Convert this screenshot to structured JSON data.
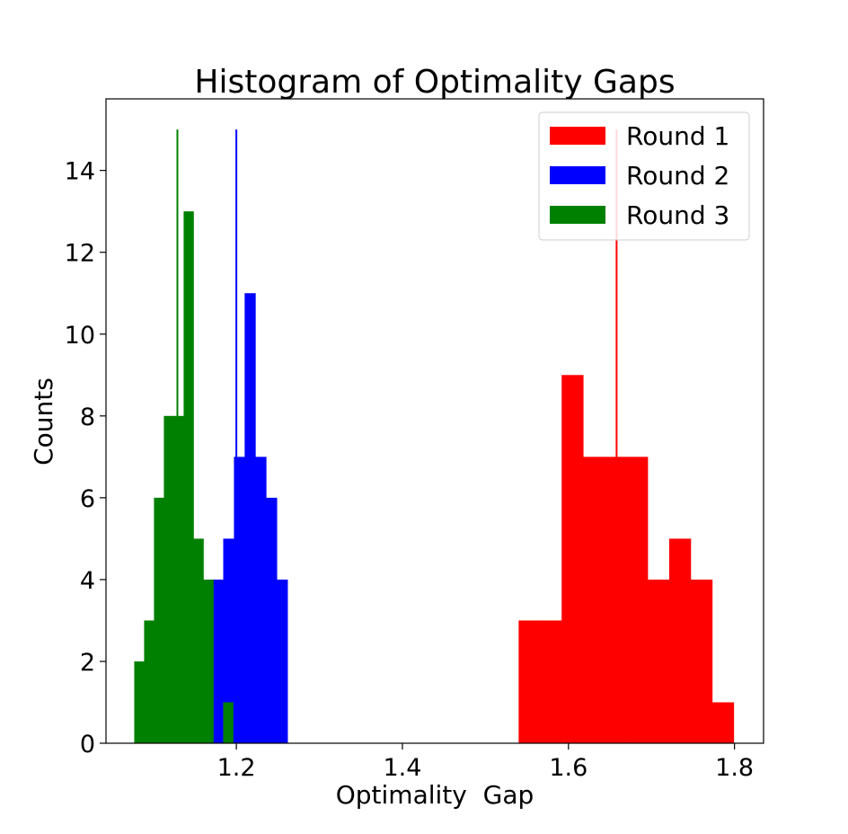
{
  "chart_data": {
    "type": "bar",
    "title": "Histogram of Optimality Gaps",
    "xlabel": "Optimality  Gap",
    "ylabel": "Counts",
    "xlim": [
      1.043,
      1.835
    ],
    "ylim": [
      0,
      15.75
    ],
    "xticks": [
      1.2,
      1.4,
      1.6,
      1.8
    ],
    "yticks": [
      0,
      2,
      4,
      6,
      8,
      10,
      12,
      14
    ],
    "grid": false,
    "legend_position": "top-right",
    "series": [
      {
        "name": "Round 1",
        "color": "#ff0000",
        "bin_width": 0.0259,
        "bins": [
          {
            "x": 1.54,
            "count": 3
          },
          {
            "x": 1.5659,
            "count": 3
          },
          {
            "x": 1.5918,
            "count": 9
          },
          {
            "x": 1.6177,
            "count": 7
          },
          {
            "x": 1.6436,
            "count": 7
          },
          {
            "x": 1.6695,
            "count": 7
          },
          {
            "x": 1.6954,
            "count": 4
          },
          {
            "x": 1.7213,
            "count": 5
          },
          {
            "x": 1.7472,
            "count": 4
          },
          {
            "x": 1.7731,
            "count": 1
          }
        ],
        "mean_x": 1.658
      },
      {
        "name": "Round 2",
        "color": "#0000ff",
        "bin_width": 0.0129,
        "bins": [
          {
            "x": 1.1713,
            "count": 4
          },
          {
            "x": 1.1842,
            "count": 5
          },
          {
            "x": 1.1971,
            "count": 7
          },
          {
            "x": 1.21,
            "count": 11
          },
          {
            "x": 1.2229,
            "count": 7
          },
          {
            "x": 1.2358,
            "count": 6
          },
          {
            "x": 1.2487,
            "count": 4
          }
        ],
        "mean_x": 1.2
      },
      {
        "name": "Round 3",
        "color": "#008000",
        "bin_width": 0.0119,
        "bins": [
          {
            "x": 1.077,
            "count": 2
          },
          {
            "x": 1.0889,
            "count": 3
          },
          {
            "x": 1.1008,
            "count": 6
          },
          {
            "x": 1.1127,
            "count": 8
          },
          {
            "x": 1.1246,
            "count": 8
          },
          {
            "x": 1.1365,
            "count": 13
          },
          {
            "x": 1.1484,
            "count": 5
          },
          {
            "x": 1.1603,
            "count": 4
          },
          {
            "x": 1.1722,
            "count": 0
          },
          {
            "x": 1.1841,
            "count": 1
          }
        ],
        "mean_x": 1.129
      }
    ],
    "mean_line_top": 15
  }
}
